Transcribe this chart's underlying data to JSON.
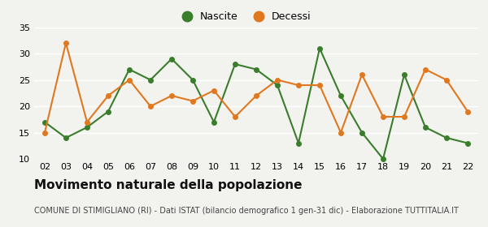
{
  "years": [
    "02",
    "03",
    "04",
    "05",
    "06",
    "07",
    "08",
    "09",
    "10",
    "11",
    "12",
    "13",
    "14",
    "15",
    "16",
    "17",
    "18",
    "19",
    "20",
    "21",
    "22"
  ],
  "nascite": [
    17,
    14,
    16,
    19,
    27,
    25,
    29,
    25,
    17,
    28,
    27,
    24,
    13,
    31,
    22,
    15,
    10,
    26,
    16,
    14,
    13
  ],
  "decessi": [
    15,
    32,
    17,
    22,
    25,
    20,
    22,
    21,
    23,
    18,
    22,
    25,
    24,
    24,
    15,
    26,
    18,
    18,
    27,
    25,
    19
  ],
  "nascite_color": "#3a7d2c",
  "decessi_color": "#e07820",
  "bg_color": "#f2f2ee",
  "grid_color": "#ffffff",
  "title": "Movimento naturale della popolazione",
  "subtitle": "COMUNE DI STIMIGLIANO (RI) - Dati ISTAT (bilancio demografico 1 gen-31 dic) - Elaborazione TUTTITALIA.IT",
  "ylim": [
    10,
    35
  ],
  "yticks": [
    10,
    15,
    20,
    25,
    30,
    35
  ],
  "legend_nascite": "Nascite",
  "legend_decessi": "Decessi",
  "title_fontsize": 11,
  "subtitle_fontsize": 7,
  "tick_fontsize": 8,
  "legend_fontsize": 9
}
